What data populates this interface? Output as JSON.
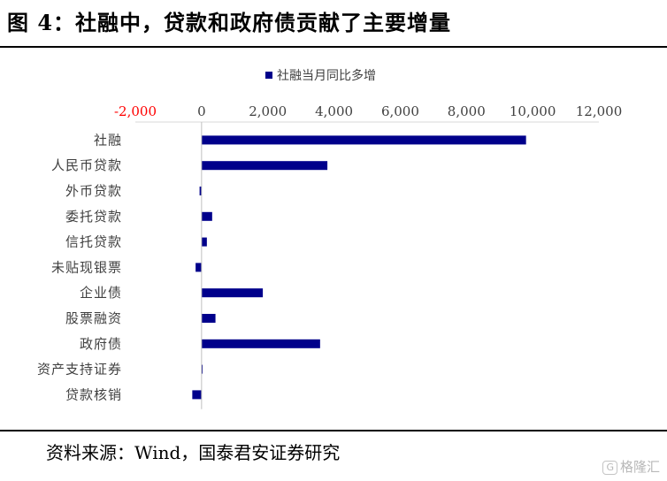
{
  "figure": {
    "title": "图 4：社融中，贷款和政府债贡献了主要增量",
    "source": "资料来源：Wind，国泰君安证券研究",
    "watermark": "格隆汇",
    "watermark_logo": "G"
  },
  "chart_data": {
    "type": "bar",
    "orientation": "horizontal",
    "title": "",
    "xlabel": "",
    "ylabel": "",
    "xlim": [
      -2000,
      12000
    ],
    "x_ticks": [
      -2000,
      0,
      2000,
      4000,
      6000,
      8000,
      10000,
      12000
    ],
    "x_tick_labels": [
      "-2,000",
      "0",
      "2,000",
      "4,000",
      "6,000",
      "8,000",
      "10,000",
      "12,000"
    ],
    "negative_tick_color": "#ff0000",
    "axis_position": "top",
    "grid": false,
    "legend_position": "top-center",
    "categories": [
      "社融",
      "人民币贷款",
      "外币贷款",
      "委托贷款",
      "信托贷款",
      "未贴现银票",
      "企业债",
      "股票融资",
      "政府债",
      "资产支持证券",
      "贷款核销"
    ],
    "series": [
      {
        "name": "社融当月同比多增",
        "color": "#00008b",
        "values": [
          9800,
          3800,
          -60,
          320,
          160,
          -180,
          1850,
          420,
          3580,
          30,
          -280
        ]
      }
    ]
  }
}
